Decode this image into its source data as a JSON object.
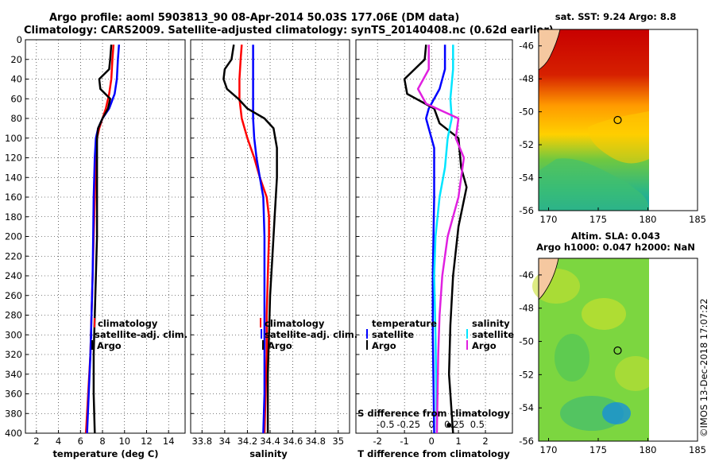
{
  "title": {
    "line1": "Argo profile: aoml 5903813_90 08-Apr-2014 50.03S 177.06E (DM data)",
    "line2": "Climatology: CARS2009. Satellite-adjusted climatology: synTS_20140408.nc (0.62d earlier)"
  },
  "colors": {
    "climatology": "#ff0000",
    "satellite": "#0000ff",
    "argo": "#000000",
    "sat_sal": "#00e5ff",
    "argo_sal": "#e020e0"
  },
  "chart_data": [
    {
      "type": "line",
      "id": "temperature",
      "xlabel": "temperature (deg C)",
      "ylabel": "",
      "xlim": [
        1,
        15.5
      ],
      "ylim": [
        0,
        400
      ],
      "x_ticks": [
        "2",
        "4",
        "6",
        "8",
        "10",
        "12",
        "14"
      ],
      "y_ticks": [
        "0",
        "20",
        "40",
        "60",
        "80",
        "100",
        "120",
        "140",
        "160",
        "180",
        "200",
        "220",
        "240",
        "260",
        "280",
        "300",
        "320",
        "340",
        "360",
        "380",
        "400"
      ],
      "legend": [
        "climatology",
        "satellite-adj. clim.",
        "Argo"
      ],
      "series": [
        {
          "name": "climatology",
          "color": "#ff0000",
          "points": [
            [
              9.0,
              5
            ],
            [
              8.9,
              20
            ],
            [
              8.8,
              40
            ],
            [
              8.6,
              55
            ],
            [
              8.3,
              70
            ],
            [
              8.0,
              80
            ],
            [
              7.7,
              90
            ],
            [
              7.5,
              100
            ],
            [
              7.4,
              120
            ],
            [
              7.3,
              160
            ],
            [
              7.2,
              200
            ],
            [
              7.1,
              240
            ],
            [
              7.0,
              280
            ],
            [
              6.9,
              320
            ],
            [
              6.7,
              360
            ],
            [
              6.5,
              400
            ]
          ]
        },
        {
          "name": "satellite-adj. clim.",
          "color": "#0000ff",
          "points": [
            [
              9.5,
              5
            ],
            [
              9.4,
              20
            ],
            [
              9.3,
              40
            ],
            [
              9.1,
              55
            ],
            [
              8.6,
              70
            ],
            [
              8.0,
              80
            ],
            [
              7.6,
              90
            ],
            [
              7.4,
              100
            ],
            [
              7.3,
              120
            ],
            [
              7.2,
              160
            ],
            [
              7.15,
              200
            ],
            [
              7.1,
              240
            ],
            [
              7.0,
              280
            ],
            [
              6.9,
              320
            ],
            [
              6.75,
              360
            ],
            [
              6.6,
              400
            ]
          ]
        },
        {
          "name": "Argo",
          "color": "#000000",
          "points": [
            [
              8.8,
              5
            ],
            [
              8.7,
              20
            ],
            [
              8.6,
              30
            ],
            [
              7.7,
              40
            ],
            [
              7.8,
              50
            ],
            [
              8.7,
              60
            ],
            [
              8.5,
              70
            ],
            [
              8.0,
              80
            ],
            [
              7.6,
              90
            ],
            [
              7.5,
              100
            ],
            [
              7.5,
              120
            ],
            [
              7.5,
              160
            ],
            [
              7.5,
              200
            ],
            [
              7.4,
              240
            ],
            [
              7.3,
              280
            ],
            [
              7.2,
              320
            ],
            [
              7.2,
              360
            ],
            [
              7.3,
              400
            ]
          ]
        }
      ]
    },
    {
      "type": "line",
      "id": "salinity",
      "xlabel": "salinity",
      "ylabel": "",
      "xlim": [
        33.7,
        35.1
      ],
      "ylim": [
        0,
        400
      ],
      "x_ticks": [
        "33.8",
        "34",
        "34.2",
        "34.4",
        "34.6",
        "34.8",
        "35"
      ],
      "legend": [
        "climatology",
        "satellite-adj. clim.",
        "Argo"
      ],
      "series": [
        {
          "name": "climatology",
          "color": "#ff0000",
          "points": [
            [
              34.15,
              5
            ],
            [
              34.14,
              20
            ],
            [
              34.13,
              40
            ],
            [
              34.13,
              60
            ],
            [
              34.15,
              80
            ],
            [
              34.2,
              100
            ],
            [
              34.26,
              120
            ],
            [
              34.31,
              140
            ],
            [
              34.37,
              160
            ],
            [
              34.39,
              180
            ],
            [
              34.39,
              200
            ],
            [
              34.38,
              240
            ],
            [
              34.37,
              280
            ],
            [
              34.37,
              320
            ],
            [
              34.36,
              360
            ],
            [
              34.35,
              400
            ]
          ]
        },
        {
          "name": "satellite-adj. clim.",
          "color": "#0000ff",
          "points": [
            [
              34.25,
              5
            ],
            [
              34.25,
              40
            ],
            [
              34.25,
              80
            ],
            [
              34.26,
              100
            ],
            [
              34.28,
              120
            ],
            [
              34.31,
              140
            ],
            [
              34.34,
              160
            ],
            [
              34.35,
              200
            ],
            [
              34.35,
              240
            ],
            [
              34.35,
              280
            ],
            [
              34.35,
              320
            ],
            [
              34.35,
              360
            ],
            [
              34.34,
              400
            ]
          ]
        },
        {
          "name": "Argo",
          "color": "#000000",
          "points": [
            [
              34.08,
              5
            ],
            [
              34.06,
              20
            ],
            [
              34.0,
              30
            ],
            [
              33.99,
              40
            ],
            [
              34.02,
              50
            ],
            [
              34.12,
              60
            ],
            [
              34.2,
              70
            ],
            [
              34.35,
              80
            ],
            [
              34.43,
              90
            ],
            [
              34.46,
              110
            ],
            [
              34.46,
              140
            ],
            [
              34.44,
              180
            ],
            [
              34.42,
              220
            ],
            [
              34.4,
              260
            ],
            [
              34.39,
              300
            ],
            [
              34.38,
              340
            ],
            [
              34.38,
              380
            ],
            [
              34.38,
              400
            ]
          ]
        }
      ]
    },
    {
      "type": "line",
      "id": "difference",
      "xlabel": "T difference from climatology",
      "xlabel_top": "S difference from climatology",
      "xlim": [
        -2.8,
        3.0
      ],
      "ylim": [
        0,
        400
      ],
      "x_ticks": [
        "-2",
        "-1",
        "0",
        "1",
        "2"
      ],
      "x_ticks_top": [
        "-0.5",
        "-0.25",
        "0",
        "0.25",
        "0.5"
      ],
      "legend_temperature_title": "temperature",
      "legend_salinity_title": "salinity",
      "legend_temperature": [
        "satellite",
        "Argo"
      ],
      "legend_salinity": [
        "satellite",
        "Argo"
      ],
      "series": [
        {
          "name": "satellite (T)",
          "color": "#0000ff",
          "points": [
            [
              0.5,
              5
            ],
            [
              0.5,
              30
            ],
            [
              0.3,
              50
            ],
            [
              -0.1,
              70
            ],
            [
              -0.2,
              80
            ],
            [
              -0.1,
              90
            ],
            [
              0.1,
              110
            ],
            [
              0.1,
              160
            ],
            [
              0.05,
              240
            ],
            [
              0.05,
              300
            ],
            [
              0.1,
              400
            ]
          ]
        },
        {
          "name": "Argo (T)",
          "color": "#000000",
          "points": [
            [
              -0.2,
              5
            ],
            [
              -0.25,
              20
            ],
            [
              -1.0,
              40
            ],
            [
              -0.9,
              55
            ],
            [
              0.1,
              70
            ],
            [
              0.3,
              85
            ],
            [
              1.0,
              100
            ],
            [
              1.1,
              130
            ],
            [
              1.3,
              150
            ],
            [
              1.0,
              190
            ],
            [
              0.8,
              240
            ],
            [
              0.7,
              290
            ],
            [
              0.65,
              340
            ],
            [
              0.75,
              380
            ],
            [
              0.8,
              400
            ]
          ]
        },
        {
          "name": "satellite (S)",
          "color": "#00e5ff",
          "points": [
            [
              0.8,
              5
            ],
            [
              0.8,
              30
            ],
            [
              0.7,
              60
            ],
            [
              0.75,
              80
            ],
            [
              0.6,
              100
            ],
            [
              0.5,
              130
            ],
            [
              0.3,
              160
            ],
            [
              0.15,
              200
            ],
            [
              0.1,
              240
            ],
            [
              0.15,
              300
            ],
            [
              0.2,
              400
            ]
          ]
        },
        {
          "name": "Argo (S)",
          "color": "#e020e0",
          "points": [
            [
              -0.1,
              5
            ],
            [
              -0.1,
              30
            ],
            [
              -0.5,
              50
            ],
            [
              -0.2,
              65
            ],
            [
              1.0,
              80
            ],
            [
              0.9,
              100
            ],
            [
              1.2,
              120
            ],
            [
              1.0,
              160
            ],
            [
              0.6,
              200
            ],
            [
              0.4,
              240
            ],
            [
              0.3,
              280
            ],
            [
              0.25,
              320
            ],
            [
              0.2,
              400
            ]
          ]
        }
      ]
    },
    {
      "type": "heatmap",
      "id": "sst-map",
      "title": "sat. SST: 9.24 Argo: 8.8",
      "x_ticks": [
        "170",
        "175",
        "180",
        "185"
      ],
      "y_ticks": [
        "-46",
        "-48",
        "-50",
        "-52",
        "-54",
        "-56"
      ],
      "xlim": [
        169,
        185
      ],
      "ylim": [
        -56,
        -45
      ],
      "argo_position": [
        177.06,
        -50.03
      ]
    },
    {
      "type": "heatmap",
      "id": "sla-map",
      "title_line1": "Altim. SLA: 0.043",
      "title_line2": "Argo h1000: 0.047 h2000: NaN",
      "x_ticks": [
        "170",
        "175",
        "180",
        "185"
      ],
      "y_ticks": [
        "-46",
        "-48",
        "-50",
        "-52",
        "-54",
        "-56"
      ],
      "xlim": [
        169,
        185
      ],
      "ylim": [
        -56,
        -45
      ],
      "argo_position": [
        177.06,
        -50.03
      ]
    }
  ],
  "footer": "©IMOS 13-Dec-2018 17:07:22"
}
